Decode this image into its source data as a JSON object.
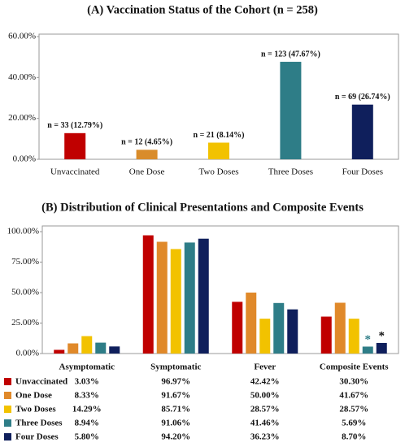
{
  "chart_data": [
    {
      "type": "bar",
      "title": "(A) Vaccination Status of the Cohort (n = 258)",
      "categories": [
        "Unvaccinated",
        "One Dose",
        "Two Doses",
        "Three Doses",
        "Four Doses"
      ],
      "values": [
        12.79,
        4.65,
        8.14,
        47.67,
        26.74
      ],
      "value_labels": [
        "n = 33 (12.79%)",
        "n = 12 (4.65%)",
        "n = 21 (8.14%)",
        "n = 123 (47.67%)",
        "n = 69 (26.74%)"
      ],
      "colors": [
        "#c00000",
        "#d98c2b",
        "#f2c200",
        "#2e7d87",
        "#0f1f5c"
      ],
      "ylim": [
        0,
        60
      ],
      "yticks": [
        {
          "value": 0,
          "label": "0.00%"
        },
        {
          "value": 20,
          "label": "20.00%"
        },
        {
          "value": 40,
          "label": "40.00%"
        },
        {
          "value": 60,
          "label": "60.00%"
        }
      ]
    },
    {
      "type": "grouped_bar",
      "title": "(B) Distribution of Clinical Presentations and Composite Events",
      "categories": [
        "Asymptomatic",
        "Symptomatic",
        "Fever",
        "Composite Events"
      ],
      "series": [
        {
          "name": "Unvaccinated",
          "color": "#c00000",
          "values": [
            3.03,
            96.97,
            42.42,
            30.3
          ],
          "value_labels": [
            "3.03%",
            "96.97%",
            "42.42%",
            "30.30%"
          ]
        },
        {
          "name": "One Dose",
          "color": "#e0892a",
          "values": [
            8.33,
            91.67,
            50.0,
            41.67
          ],
          "value_labels": [
            "8.33%",
            "91.67%",
            "50.00%",
            "41.67%"
          ]
        },
        {
          "name": "Two Doses",
          "color": "#f2c200",
          "values": [
            14.29,
            85.71,
            28.57,
            28.57
          ],
          "value_labels": [
            "14.29%",
            "85.71%",
            "28.57%",
            "28.57%"
          ]
        },
        {
          "name": "Three Doses",
          "color": "#2e7d87",
          "values": [
            8.94,
            91.06,
            41.46,
            5.69
          ],
          "value_labels": [
            "8.94%",
            "91.06%",
            "41.46%",
            "5.69%"
          ]
        },
        {
          "name": "Four Doses",
          "color": "#0f1f5c",
          "values": [
            5.8,
            94.2,
            36.23,
            8.7
          ],
          "value_labels": [
            "5.80%",
            "94.20%",
            "36.23%",
            "8.70%"
          ]
        }
      ],
      "annotations": [
        "*",
        "*"
      ],
      "ylim": [
        0,
        100
      ],
      "yticks": [
        {
          "value": 0,
          "label": "0.00%"
        },
        {
          "value": 25,
          "label": "25.00%"
        },
        {
          "value": 50,
          "label": "50.00%"
        },
        {
          "value": 75,
          "label": "75.00%"
        },
        {
          "value": 100,
          "label": "100.00%"
        }
      ]
    }
  ]
}
